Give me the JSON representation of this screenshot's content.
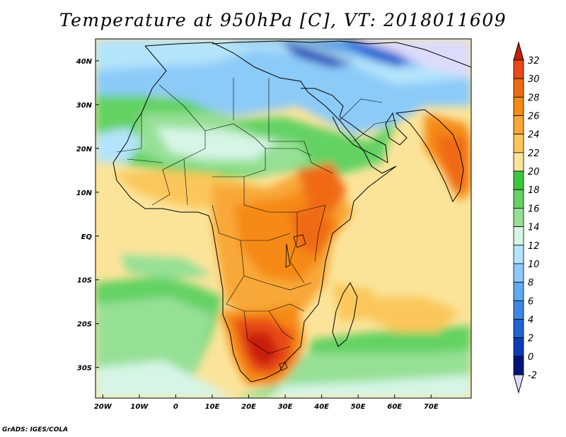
{
  "title": "Temperature at 950hPa [C], VT: 2018011609",
  "credit": "GrADS: IGES/COLA",
  "map": {
    "lon_range": [
      -22,
      81
    ],
    "lat_range": [
      -37,
      45
    ],
    "lon_ticks": [
      {
        "value": -20,
        "label": "20W"
      },
      {
        "value": -10,
        "label": "10W"
      },
      {
        "value": 0,
        "label": "0"
      },
      {
        "value": 10,
        "label": "10E"
      },
      {
        "value": 20,
        "label": "20E"
      },
      {
        "value": 30,
        "label": "30E"
      },
      {
        "value": 40,
        "label": "40E"
      },
      {
        "value": 50,
        "label": "50E"
      },
      {
        "value": 60,
        "label": "60E"
      },
      {
        "value": 70,
        "label": "70E"
      }
    ],
    "lat_ticks": [
      {
        "value": 40,
        "label": "40N"
      },
      {
        "value": 30,
        "label": "30N"
      },
      {
        "value": 20,
        "label": "20N"
      },
      {
        "value": 10,
        "label": "10N"
      },
      {
        "value": 0,
        "label": "EQ"
      },
      {
        "value": -10,
        "label": "10S"
      },
      {
        "value": -20,
        "label": "20S"
      },
      {
        "value": -30,
        "label": "30S"
      }
    ]
  },
  "colorbar": {
    "labels": [
      "32",
      "30",
      "28",
      "26",
      "24",
      "22",
      "20",
      "18",
      "16",
      "14",
      "12",
      "10",
      "8",
      "6",
      "4",
      "2",
      "0",
      "-2"
    ],
    "colors": [
      "#e84a18",
      "#f06a14",
      "#f58a14",
      "#f8a838",
      "#fbc75c",
      "#fbe49a",
      "#3cc83c",
      "#64d264",
      "#96e096",
      "#d6f5e6",
      "#b4e4fb",
      "#8ccaf8",
      "#62aaf0",
      "#3c87e3",
      "#1e64d2",
      "#0a3cb4",
      "#001478"
    ],
    "over_color": "#c81e0a",
    "under_color": "#dcdcfa"
  }
}
